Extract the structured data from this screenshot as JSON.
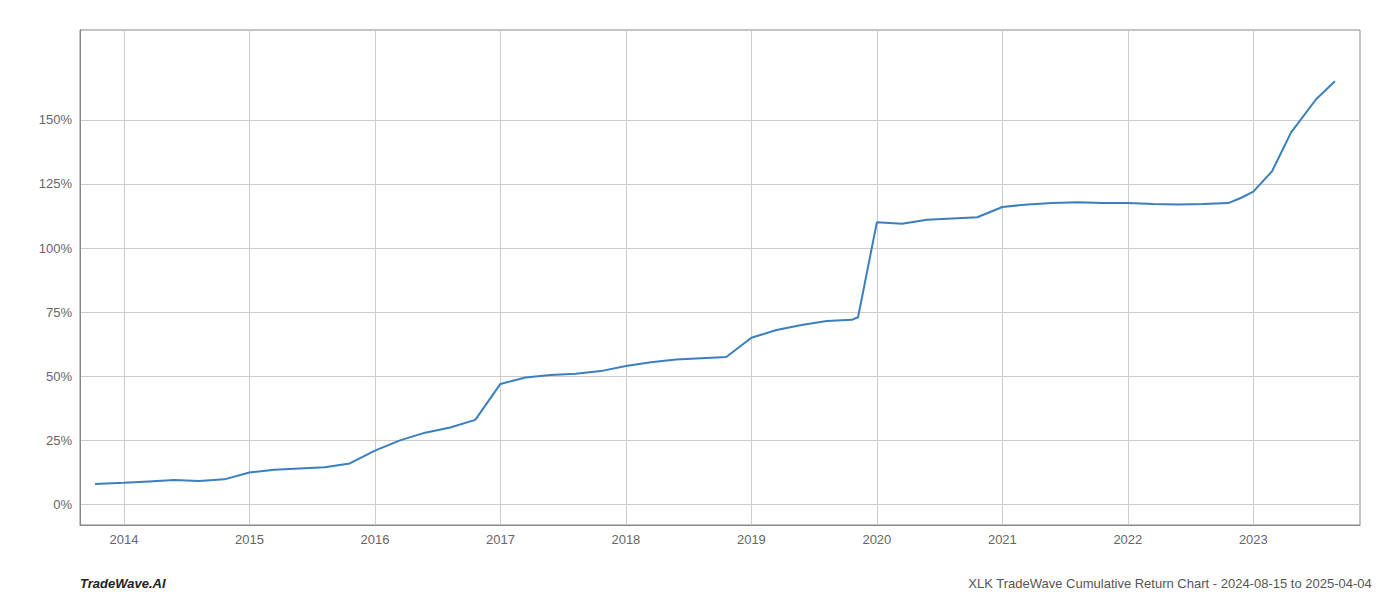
{
  "chart_data": {
    "type": "line",
    "annotations": [
      "TradeWave.AI",
      "XLK TradeWave Cumulative Return Chart - 2024-08-15 to 2025-04-04"
    ],
    "color": "#3a7fbe",
    "grid": true,
    "x": [
      2013.77,
      2014.0,
      2014.2,
      2014.4,
      2014.6,
      2014.8,
      2015.0,
      2015.2,
      2015.4,
      2015.6,
      2015.8,
      2016.0,
      2016.2,
      2016.4,
      2016.6,
      2016.8,
      2017.0,
      2017.2,
      2017.4,
      2017.6,
      2017.8,
      2018.0,
      2018.2,
      2018.4,
      2018.6,
      2018.8,
      2019.0,
      2019.2,
      2019.4,
      2019.6,
      2019.8,
      2019.85,
      2020.0,
      2020.2,
      2020.4,
      2020.6,
      2020.8,
      2021.0,
      2021.2,
      2021.4,
      2021.6,
      2021.8,
      2022.0,
      2022.2,
      2022.4,
      2022.6,
      2022.8,
      2022.9,
      2023.0,
      2023.15,
      2023.3,
      2023.5,
      2023.65
    ],
    "values": [
      8.0,
      8.5,
      9.0,
      9.5,
      9.2,
      9.8,
      12.5,
      13.5,
      14.0,
      14.5,
      16.0,
      21.0,
      25.0,
      28.0,
      30.0,
      33.0,
      47.0,
      49.5,
      50.5,
      51.0,
      52.0,
      54.0,
      55.5,
      56.5,
      57.0,
      57.5,
      65.0,
      68.0,
      70.0,
      71.5,
      72.0,
      73.0,
      110.0,
      109.5,
      111.0,
      111.5,
      112.0,
      116.0,
      117.0,
      117.5,
      117.8,
      117.5,
      117.5,
      117.2,
      117.0,
      117.2,
      117.5,
      119.5,
      122.0,
      130.0,
      145.0,
      158.0,
      165.0
    ],
    "xlim": [
      2013.65,
      2023.85
    ],
    "xticks": [
      2014,
      2015,
      2016,
      2017,
      2018,
      2019,
      2020,
      2021,
      2022,
      2023
    ],
    "ylim": [
      -8,
      185
    ],
    "yticks": [
      {
        "value": 0,
        "label": "0%"
      },
      {
        "value": 25,
        "label": "25%"
      },
      {
        "value": 50,
        "label": "50%"
      },
      {
        "value": 75,
        "label": "75%"
      },
      {
        "value": 100,
        "label": "100%"
      },
      {
        "value": 125,
        "label": "125%"
      },
      {
        "value": 150,
        "label": "150%"
      }
    ]
  }
}
